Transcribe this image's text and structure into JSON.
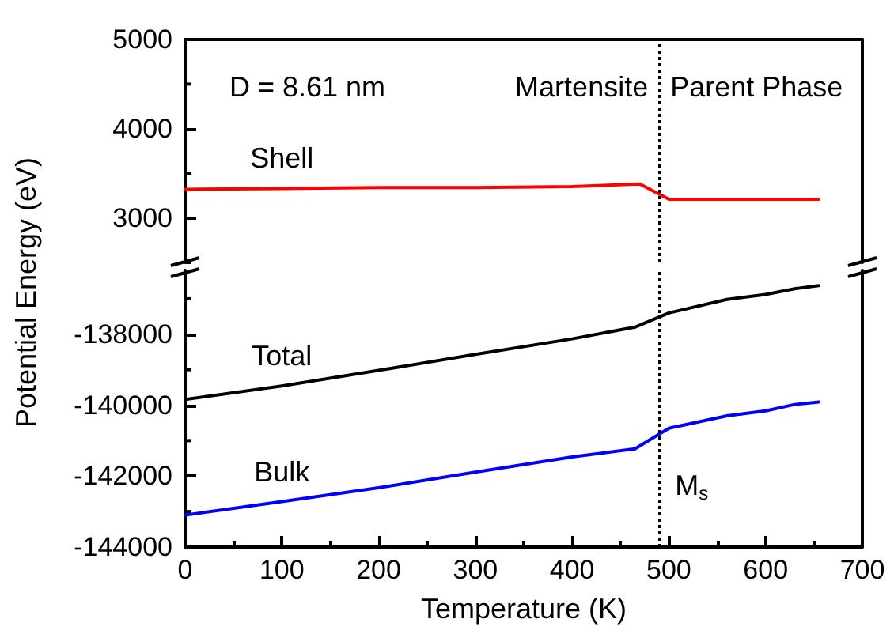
{
  "chart_data": [
    {
      "type": "line",
      "xlim": [
        0,
        700
      ],
      "ylim": [
        2500,
        5000
      ],
      "yticks": [
        3000,
        4000,
        5000
      ],
      "tick_labels": "y",
      "grid": false,
      "legend": false,
      "marker": "none",
      "line_style": "solid",
      "annotations": [
        "D = 8.61 nm",
        "Martensite",
        "Parent Phase"
      ],
      "ref_lines": [
        {
          "axis": "x",
          "value": 490,
          "line_style": "dotted",
          "color": "#000000"
        }
      ],
      "series": [
        {
          "name": "Shell",
          "color": "#ff0000",
          "x": [
            0,
            100,
            200,
            300,
            400,
            470,
            500,
            560,
            600,
            655
          ],
          "values": [
            3320,
            3330,
            3340,
            3340,
            3350,
            3380,
            3210,
            3210,
            3210,
            3210
          ]
        }
      ]
    },
    {
      "type": "line",
      "xlabel": "Temperature (K)",
      "ylabel": "Potential Energy (eV)",
      "xlim": [
        0,
        700
      ],
      "xticks": [
        0,
        100,
        200,
        300,
        400,
        500,
        600,
        700
      ],
      "ylim": [
        -144000,
        -136200
      ],
      "yticks": [
        -144000,
        -142000,
        -140000,
        -138000
      ],
      "grid": false,
      "legend": false,
      "marker": "none",
      "line_style": "solid",
      "ref_lines": [
        {
          "axis": "x",
          "value": 490,
          "label": "M$_{s}$",
          "line_style": "dotted",
          "color": "#000000"
        }
      ],
      "series": [
        {
          "name": "Total",
          "color": "#000000",
          "x": [
            0,
            100,
            200,
            300,
            400,
            465,
            500,
            560,
            600,
            630,
            655
          ],
          "values": [
            -139840,
            -139460,
            -139020,
            -138570,
            -138130,
            -137800,
            -137400,
            -137020,
            -136880,
            -136720,
            -136630
          ]
        },
        {
          "name": "Bulk",
          "color": "#0000ff",
          "x": [
            0,
            100,
            200,
            300,
            400,
            465,
            500,
            560,
            600,
            630,
            655
          ],
          "values": [
            -143100,
            -142720,
            -142330,
            -141890,
            -141460,
            -141230,
            -140650,
            -140300,
            -140160,
            -139980,
            -139910
          ]
        }
      ]
    }
  ]
}
